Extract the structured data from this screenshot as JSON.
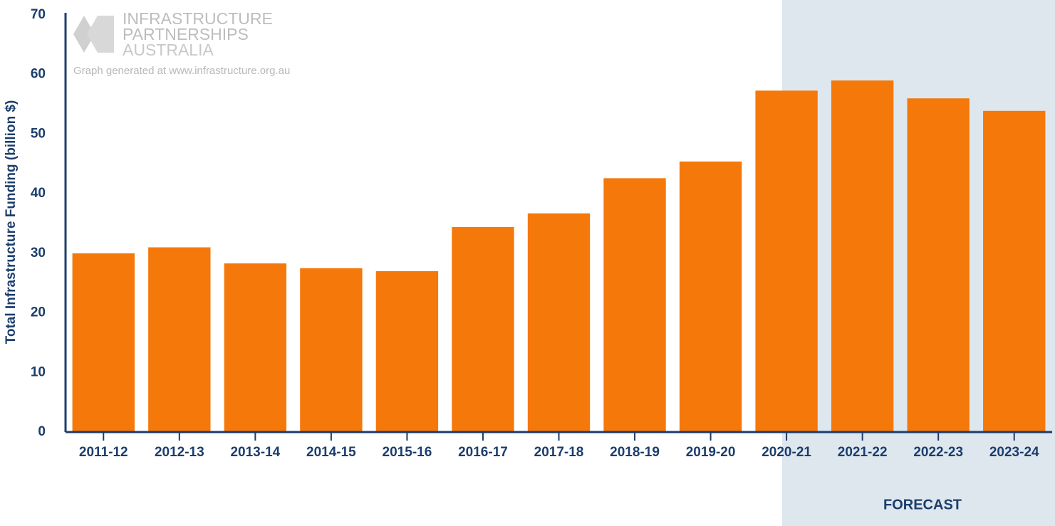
{
  "chart_data": {
    "type": "bar",
    "y_label": "Total Infrastructure Funding (billion $)",
    "categories": [
      "2011-12",
      "2012-13",
      "2013-14",
      "2014-15",
      "2015-16",
      "2016-17",
      "2017-18",
      "2018-19",
      "2019-20",
      "2020-21",
      "2021-22",
      "2022-23",
      "2023-24"
    ],
    "values": [
      30,
      31,
      28.3,
      27.5,
      27,
      34.4,
      36.7,
      42.6,
      45.4,
      57.3,
      59,
      56,
      53.9
    ],
    "color": "#f5780a",
    "ylim": [
      0,
      70
    ],
    "yticks": [
      0,
      10,
      20,
      30,
      40,
      50,
      60,
      70
    ],
    "grid": false,
    "forecast_label": "FORECAST",
    "logo_lines": [
      "INFRASTRUCTURE",
      "PARTNERSHIPS",
      "AUSTRALIA"
    ],
    "source_note": "Graph generated at www.infrastructure.org.au"
  }
}
